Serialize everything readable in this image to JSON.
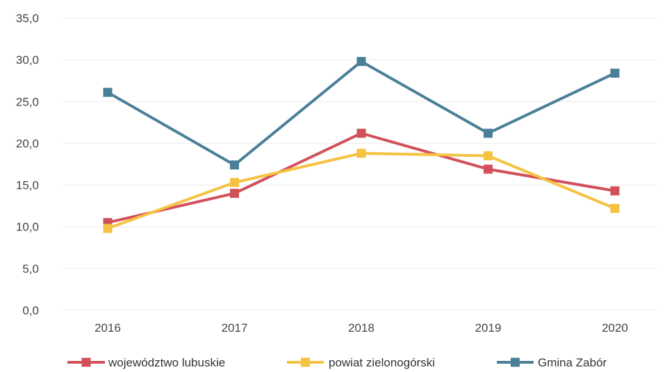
{
  "chart_data": {
    "type": "line",
    "title": "",
    "xlabel": "",
    "ylabel": "",
    "x": [
      "2016",
      "2017",
      "2018",
      "2019",
      "2020"
    ],
    "ylim": [
      0,
      35
    ],
    "yticks": [
      "0,0",
      "5,0",
      "10,0",
      "15,0",
      "20,0",
      "25,0",
      "30,0",
      "35,0"
    ],
    "grid": true,
    "legend_position": "bottom",
    "series": [
      {
        "name": "województwo lubuskie",
        "color": "#d1505a",
        "values": [
          10.5,
          14.0,
          21.2,
          16.9,
          14.3
        ]
      },
      {
        "name": "powiat zielonogórski",
        "color": "#f5c242",
        "values": [
          9.8,
          15.3,
          18.8,
          18.5,
          12.2
        ]
      },
      {
        "name": "Gmina Zabór",
        "color": "#4a7f98",
        "values": [
          26.1,
          17.4,
          29.8,
          21.2,
          28.4
        ]
      }
    ]
  }
}
